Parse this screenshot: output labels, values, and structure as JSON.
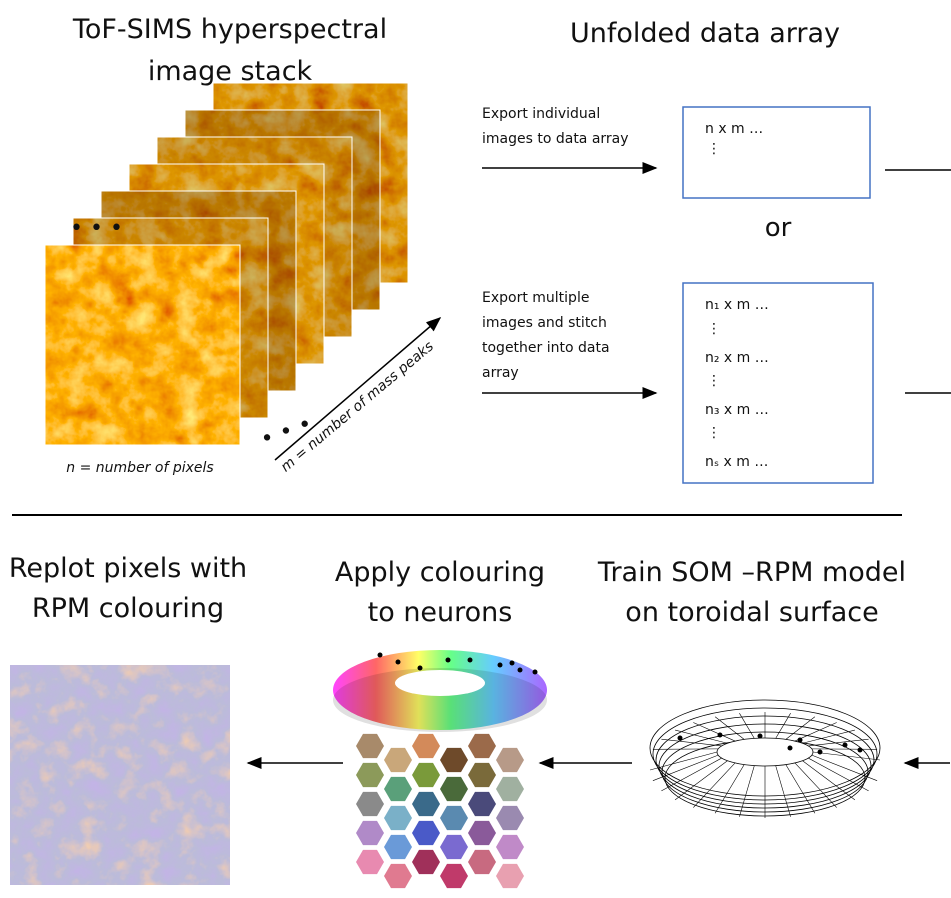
{
  "stack": {
    "title": [
      "ToF-SIMS hyperspectral",
      "image stack"
    ],
    "n_label": "n = number of pixels",
    "m_label": "m = number of mass peaks"
  },
  "array": {
    "title": "Unfolded data array",
    "export_individual": [
      "Export individual",
      "images to data array"
    ],
    "box1": [
      "n x m …",
      "⋮"
    ],
    "or": "or",
    "export_multiple": [
      "Export multiple",
      "images and stitch",
      "together into data",
      "array"
    ],
    "box2": [
      "n₁ x m …",
      "⋮",
      "n₂ x m …",
      "⋮",
      "n₃ x m …",
      "⋮",
      "nₛ x m …"
    ]
  },
  "steps": [
    {
      "title": [
        "Replot pixels with",
        "RPM colouring"
      ]
    },
    {
      "title": [
        "Apply colouring",
        "to neurons"
      ]
    },
    {
      "title": [
        "Train SOM –RPM model",
        "on toroidal surface"
      ]
    }
  ]
}
